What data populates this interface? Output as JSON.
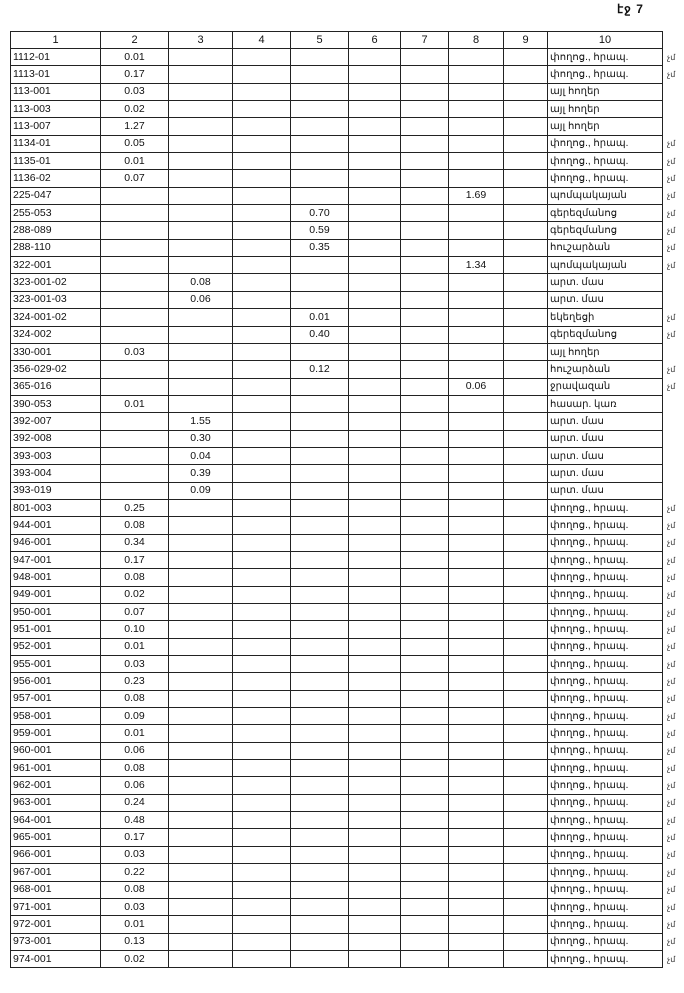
{
  "page_label": "էջ 7",
  "headers": [
    "1",
    "2",
    "3",
    "4",
    "5",
    "6",
    "7",
    "8",
    "9",
    "10"
  ],
  "rows": [
    {
      "c": [
        "1112-01",
        "0.01",
        "",
        "",
        "",
        "",
        "",
        "",
        "",
        "փողոց., հրապ."
      ],
      "m": "չմ"
    },
    {
      "c": [
        "1113-01",
        "0.17",
        "",
        "",
        "",
        "",
        "",
        "",
        "",
        "փողոց., հրապ."
      ],
      "m": "չմ"
    },
    {
      "c": [
        "113-001",
        "0.03",
        "",
        "",
        "",
        "",
        "",
        "",
        "",
        "այլ հողեր"
      ],
      "m": ""
    },
    {
      "c": [
        "113-003",
        "0.02",
        "",
        "",
        "",
        "",
        "",
        "",
        "",
        "այլ հողեր"
      ],
      "m": ""
    },
    {
      "c": [
        "113-007",
        "1.27",
        "",
        "",
        "",
        "",
        "",
        "",
        "",
        "այլ հողեր"
      ],
      "m": ""
    },
    {
      "c": [
        "1134-01",
        "0.05",
        "",
        "",
        "",
        "",
        "",
        "",
        "",
        "փողոց., հրապ."
      ],
      "m": "չմ"
    },
    {
      "c": [
        "1135-01",
        "0.01",
        "",
        "",
        "",
        "",
        "",
        "",
        "",
        "փողոց., հրապ."
      ],
      "m": "չմ"
    },
    {
      "c": [
        "1136-02",
        "0.07",
        "",
        "",
        "",
        "",
        "",
        "",
        "",
        "փողոց., հրապ."
      ],
      "m": "չմ"
    },
    {
      "c": [
        "225-047",
        "",
        "",
        "",
        "",
        "",
        "",
        "1.69",
        "",
        "պոմպակայան"
      ],
      "m": "չմ"
    },
    {
      "c": [
        "255-053",
        "",
        "",
        "",
        "0.70",
        "",
        "",
        "",
        "",
        "գերեզմանոց"
      ],
      "m": "չմ"
    },
    {
      "c": [
        "288-089",
        "",
        "",
        "",
        "0.59",
        "",
        "",
        "",
        "",
        "գերեզմանոց"
      ],
      "m": "չմ"
    },
    {
      "c": [
        "288-110",
        "",
        "",
        "",
        "0.35",
        "",
        "",
        "",
        "",
        "հուշարձան"
      ],
      "m": "չմ"
    },
    {
      "c": [
        "322-001",
        "",
        "",
        "",
        "",
        "",
        "",
        "1.34",
        "",
        "պոմպակայան"
      ],
      "m": "չմ"
    },
    {
      "c": [
        "323-001-02",
        "",
        "0.08",
        "",
        "",
        "",
        "",
        "",
        "",
        "արտ. մաս"
      ],
      "m": ""
    },
    {
      "c": [
        "323-001-03",
        "",
        "0.06",
        "",
        "",
        "",
        "",
        "",
        "",
        "արտ. մաս"
      ],
      "m": ""
    },
    {
      "c": [
        "324-001-02",
        "",
        "",
        "",
        "0.01",
        "",
        "",
        "",
        "",
        "եկեղեցի"
      ],
      "m": "չմ"
    },
    {
      "c": [
        "324-002",
        "",
        "",
        "",
        "0.40",
        "",
        "",
        "",
        "",
        "գերեզմանոց"
      ],
      "m": "չմ"
    },
    {
      "c": [
        "330-001",
        "0.03",
        "",
        "",
        "",
        "",
        "",
        "",
        "",
        "այլ հողեր"
      ],
      "m": ""
    },
    {
      "c": [
        "356-029-02",
        "",
        "",
        "",
        "0.12",
        "",
        "",
        "",
        "",
        "հուշարձան"
      ],
      "m": "չմ"
    },
    {
      "c": [
        "365-016",
        "",
        "",
        "",
        "",
        "",
        "",
        "0.06",
        "",
        "ջրավազան"
      ],
      "m": "չմ"
    },
    {
      "c": [
        "390-053",
        "0.01",
        "",
        "",
        "",
        "",
        "",
        "",
        "",
        "հասար. կառ"
      ],
      "m": ""
    },
    {
      "c": [
        "392-007",
        "",
        "1.55",
        "",
        "",
        "",
        "",
        "",
        "",
        "արտ. մաս"
      ],
      "m": ""
    },
    {
      "c": [
        "392-008",
        "",
        "0.30",
        "",
        "",
        "",
        "",
        "",
        "",
        "արտ. մաս"
      ],
      "m": ""
    },
    {
      "c": [
        "393-003",
        "",
        "0.04",
        "",
        "",
        "",
        "",
        "",
        "",
        "արտ. մաս"
      ],
      "m": ""
    },
    {
      "c": [
        "393-004",
        "",
        "0.39",
        "",
        "",
        "",
        "",
        "",
        "",
        "արտ. մաս"
      ],
      "m": ""
    },
    {
      "c": [
        "393-019",
        "",
        "0.09",
        "",
        "",
        "",
        "",
        "",
        "",
        "արտ. մաս"
      ],
      "m": ""
    },
    {
      "c": [
        "801-003",
        "0.25",
        "",
        "",
        "",
        "",
        "",
        "",
        "",
        "փողոց., հրապ."
      ],
      "m": "չմ"
    },
    {
      "c": [
        "944-001",
        "0.08",
        "",
        "",
        "",
        "",
        "",
        "",
        "",
        "փողոց., հրապ."
      ],
      "m": "չմ"
    },
    {
      "c": [
        "946-001",
        "0.34",
        "",
        "",
        "",
        "",
        "",
        "",
        "",
        "փողոց., հրապ."
      ],
      "m": "չմ"
    },
    {
      "c": [
        "947-001",
        "0.17",
        "",
        "",
        "",
        "",
        "",
        "",
        "",
        "փողոց., հրապ."
      ],
      "m": "չմ"
    },
    {
      "c": [
        "948-001",
        "0.08",
        "",
        "",
        "",
        "",
        "",
        "",
        "",
        "փողոց., հրապ."
      ],
      "m": "չմ"
    },
    {
      "c": [
        "949-001",
        "0.02",
        "",
        "",
        "",
        "",
        "",
        "",
        "",
        "փողոց., հրապ."
      ],
      "m": "չմ"
    },
    {
      "c": [
        "950-001",
        "0.07",
        "",
        "",
        "",
        "",
        "",
        "",
        "",
        "փողոց., հրապ."
      ],
      "m": "չմ"
    },
    {
      "c": [
        "951-001",
        "0.10",
        "",
        "",
        "",
        "",
        "",
        "",
        "",
        "փողոց., հրապ."
      ],
      "m": "չմ"
    },
    {
      "c": [
        "952-001",
        "0.01",
        "",
        "",
        "",
        "",
        "",
        "",
        "",
        "փողոց., հրապ."
      ],
      "m": "չմ"
    },
    {
      "c": [
        "955-001",
        "0.03",
        "",
        "",
        "",
        "",
        "",
        "",
        "",
        "փողոց., հրապ."
      ],
      "m": "չմ"
    },
    {
      "c": [
        "956-001",
        "0.23",
        "",
        "",
        "",
        "",
        "",
        "",
        "",
        "փողոց., հրապ."
      ],
      "m": "չմ"
    },
    {
      "c": [
        "957-001",
        "0.08",
        "",
        "",
        "",
        "",
        "",
        "",
        "",
        "փողոց., հրապ."
      ],
      "m": "չմ"
    },
    {
      "c": [
        "958-001",
        "0.09",
        "",
        "",
        "",
        "",
        "",
        "",
        "",
        "փողոց., հրապ."
      ],
      "m": "չմ"
    },
    {
      "c": [
        "959-001",
        "0.01",
        "",
        "",
        "",
        "",
        "",
        "",
        "",
        "փողոց., հրապ."
      ],
      "m": "չմ"
    },
    {
      "c": [
        "960-001",
        "0.06",
        "",
        "",
        "",
        "",
        "",
        "",
        "",
        "փողոց., հրապ."
      ],
      "m": "չմ"
    },
    {
      "c": [
        "961-001",
        "0.08",
        "",
        "",
        "",
        "",
        "",
        "",
        "",
        "փողոց., հրապ."
      ],
      "m": "չմ"
    },
    {
      "c": [
        "962-001",
        "0.06",
        "",
        "",
        "",
        "",
        "",
        "",
        "",
        "փողոց., հրապ."
      ],
      "m": "չմ"
    },
    {
      "c": [
        "963-001",
        "0.24",
        "",
        "",
        "",
        "",
        "",
        "",
        "",
        "փողոց., հրապ."
      ],
      "m": "չմ"
    },
    {
      "c": [
        "964-001",
        "0.48",
        "",
        "",
        "",
        "",
        "",
        "",
        "",
        "փողոց., հրապ."
      ],
      "m": "չմ"
    },
    {
      "c": [
        "965-001",
        "0.17",
        "",
        "",
        "",
        "",
        "",
        "",
        "",
        "փողոց., հրապ."
      ],
      "m": "չմ"
    },
    {
      "c": [
        "966-001",
        "0.03",
        "",
        "",
        "",
        "",
        "",
        "",
        "",
        "փողոց., հրապ."
      ],
      "m": "չմ"
    },
    {
      "c": [
        "967-001",
        "0.22",
        "",
        "",
        "",
        "",
        "",
        "",
        "",
        "փողոց., հրապ."
      ],
      "m": "չմ"
    },
    {
      "c": [
        "968-001",
        "0.08",
        "",
        "",
        "",
        "",
        "",
        "",
        "",
        "փողոց., հրապ."
      ],
      "m": "չմ"
    },
    {
      "c": [
        "971-001",
        "0.03",
        "",
        "",
        "",
        "",
        "",
        "",
        "",
        "փողոց., հրապ."
      ],
      "m": "չմ"
    },
    {
      "c": [
        "972-001",
        "0.01",
        "",
        "",
        "",
        "",
        "",
        "",
        "",
        "փողոց., հրապ."
      ],
      "m": "չմ"
    },
    {
      "c": [
        "973-001",
        "0.13",
        "",
        "",
        "",
        "",
        "",
        "",
        "",
        "փողոց., հրապ."
      ],
      "m": "չմ"
    },
    {
      "c": [
        "974-001",
        "0.02",
        "",
        "",
        "",
        "",
        "",
        "",
        "",
        "փողոց., հրապ."
      ],
      "m": "չմ"
    }
  ]
}
